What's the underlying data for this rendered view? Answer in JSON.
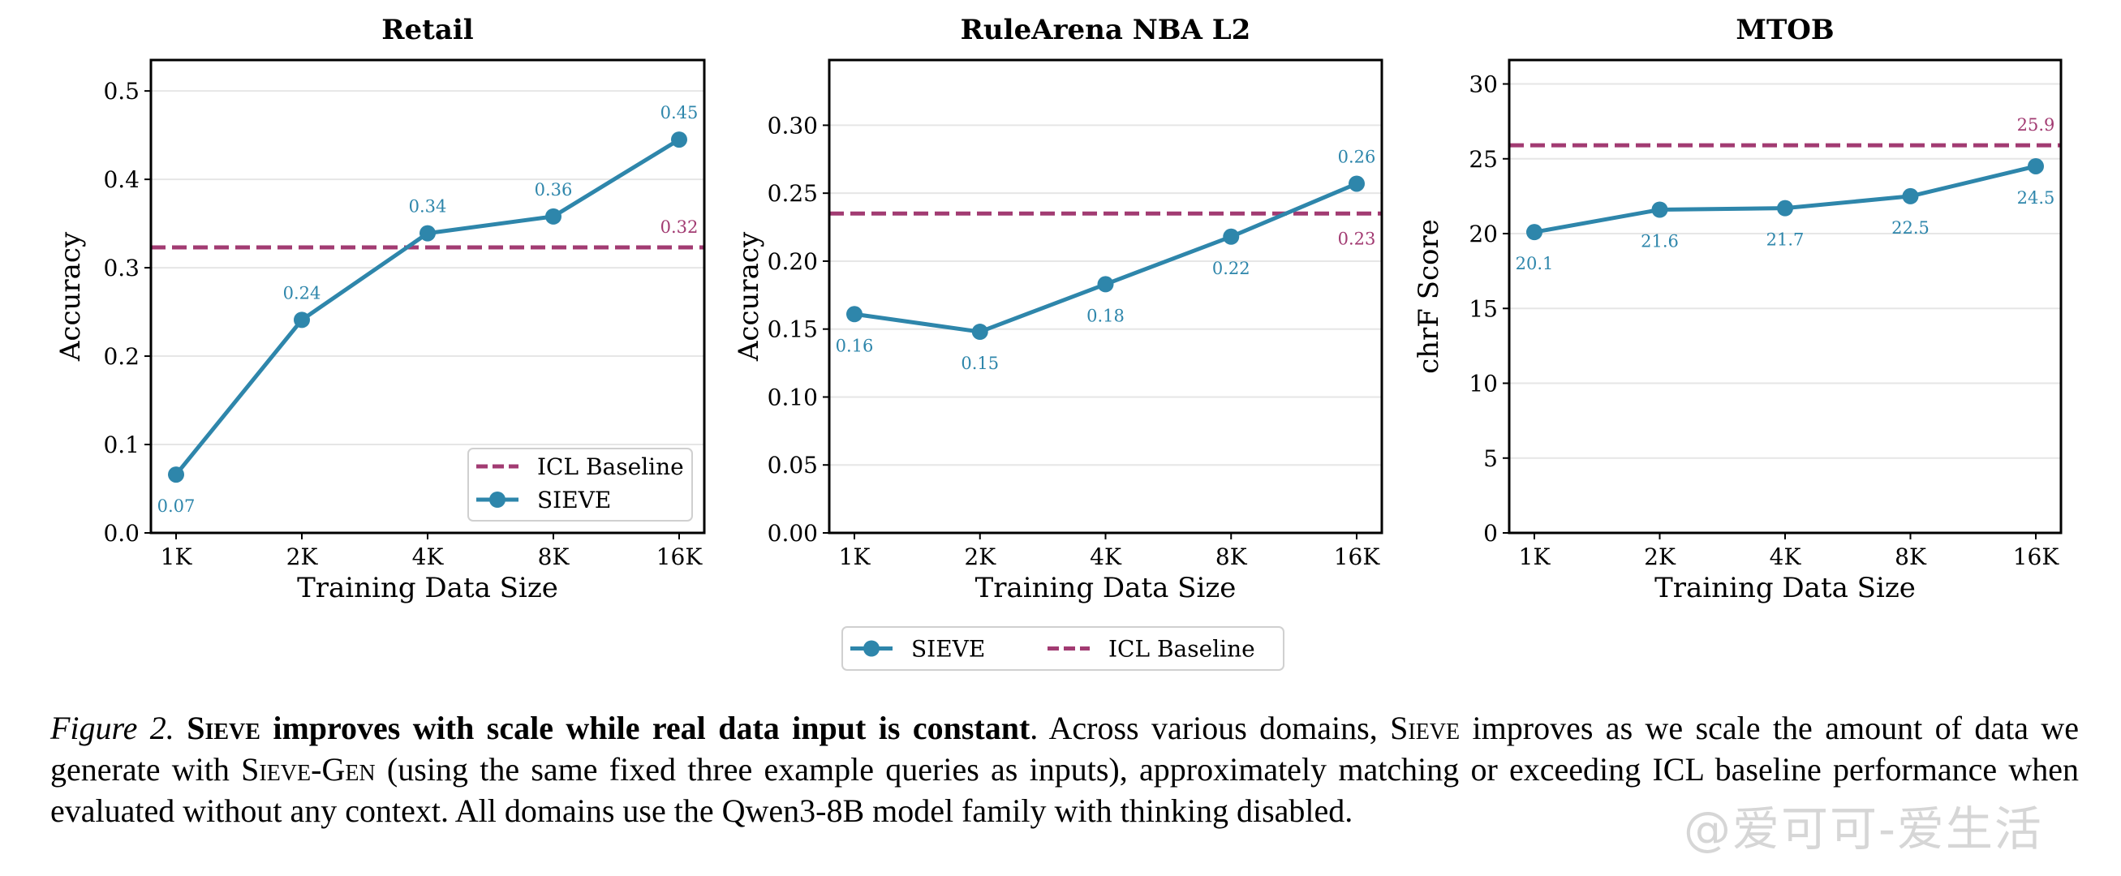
{
  "figure": {
    "colors": {
      "sieve": "#2E86AB",
      "baseline": "#A23B72",
      "grid": "#e6e6e6",
      "axis": "#000000"
    },
    "shared_legend": {
      "items": [
        {
          "label": "SIEVE",
          "style": "line-marker",
          "series": "sieve"
        },
        {
          "label": "ICL Baseline",
          "style": "dashed",
          "series": "baseline"
        }
      ],
      "placement": "bottom-center"
    },
    "caption": {
      "figure_label": "Figure 2.",
      "title_sc": "Sieve",
      "title_rest": " improves with scale while real data input is constant",
      "body_1": ". Across various domains, ",
      "body_sc_1": "Sieve",
      "body_2": " improves as we scale the amount of data we generate with ",
      "body_sc_2": "Sieve-Gen",
      "body_3": " (using the same fixed three example queries as inputs), approximately matching or exceeding ICL baseline performance when evaluated without any context. All domains use the Qwen3-8B model family with thinking disabled."
    },
    "watermark": "@爱可可-爱生活"
  },
  "chart_data": [
    {
      "type": "line",
      "title": "Retail",
      "xlabel": "Training Data Size",
      "ylabel": "Accuracy",
      "categories": [
        "1K",
        "2K",
        "4K",
        "8K",
        "16K"
      ],
      "ylim": [
        0,
        0.535
      ],
      "yticks": [
        0.0,
        0.1,
        0.2,
        0.3,
        0.4,
        0.5
      ],
      "ytick_labels": [
        "0.0",
        "0.1",
        "0.2",
        "0.3",
        "0.4",
        "0.5"
      ],
      "grid": "horizontal",
      "series": [
        {
          "name": "SIEVE",
          "values": [
            0.066,
            0.241,
            0.339,
            0.358,
            0.445
          ],
          "labels": [
            "0.07",
            "0.24",
            "0.34",
            "0.36",
            "0.45"
          ],
          "label_pos": [
            "below",
            "above",
            "above",
            "above",
            "above"
          ]
        }
      ],
      "baseline": {
        "name": "ICL Baseline",
        "value": 0.323,
        "label": "0.32",
        "label_pos": "above"
      },
      "legend": {
        "placement": "lower-right",
        "items": [
          "ICL Baseline",
          "SIEVE"
        ]
      }
    },
    {
      "type": "line",
      "title": "RuleArena NBA L2",
      "xlabel": "Training Data Size",
      "ylabel": "Accuracy",
      "categories": [
        "1K",
        "2K",
        "4K",
        "8K",
        "16K"
      ],
      "ylim": [
        0,
        0.348
      ],
      "yticks": [
        0.0,
        0.05,
        0.1,
        0.15,
        0.2,
        0.25,
        0.3
      ],
      "ytick_labels": [
        "0.00",
        "0.05",
        "0.10",
        "0.15",
        "0.20",
        "0.25",
        "0.30"
      ],
      "grid": "horizontal",
      "series": [
        {
          "name": "SIEVE",
          "values": [
            0.161,
            0.148,
            0.183,
            0.218,
            0.257
          ],
          "labels": [
            "0.16",
            "0.15",
            "0.18",
            "0.22",
            "0.26"
          ],
          "label_pos": [
            "below",
            "below",
            "below",
            "below",
            "above"
          ]
        }
      ],
      "baseline": {
        "name": "ICL Baseline",
        "value": 0.235,
        "label": "0.23",
        "label_pos": "below"
      },
      "legend": null
    },
    {
      "type": "line",
      "title": "MTOB",
      "xlabel": "Training Data Size",
      "ylabel": "chrF Score",
      "categories": [
        "1K",
        "2K",
        "4K",
        "8K",
        "16K"
      ],
      "ylim": [
        0,
        31.6
      ],
      "yticks": [
        0,
        5,
        10,
        15,
        20,
        25,
        30
      ],
      "ytick_labels": [
        "0",
        "5",
        "10",
        "15",
        "20",
        "25",
        "30"
      ],
      "grid": "horizontal",
      "series": [
        {
          "name": "SIEVE",
          "values": [
            20.1,
            21.6,
            21.7,
            22.5,
            24.5
          ],
          "labels": [
            "20.1",
            "21.6",
            "21.7",
            "22.5",
            "24.5"
          ],
          "label_pos": [
            "below",
            "below",
            "below",
            "below",
            "below"
          ]
        }
      ],
      "baseline": {
        "name": "ICL Baseline",
        "value": 25.9,
        "label": "25.9",
        "label_pos": "above"
      },
      "legend": null
    }
  ]
}
